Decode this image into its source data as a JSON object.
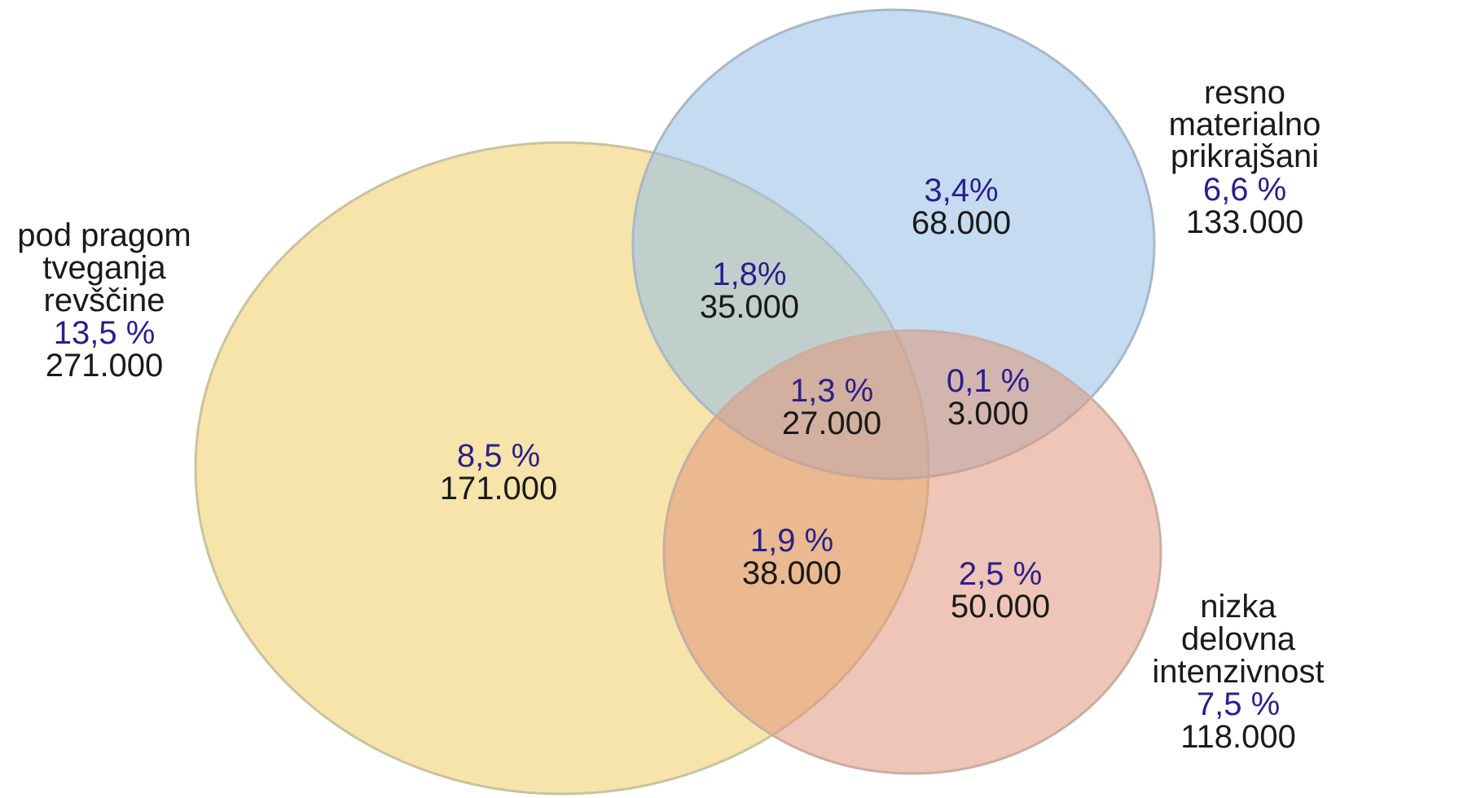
{
  "sets": [
    {
      "id": "poverty",
      "name_lines": [
        "pod pragom",
        "tveganja",
        "revščine"
      ],
      "percent": "13,5 %",
      "count": "271.000",
      "fill": "#f0d477",
      "stroke": "#c9c39e"
    },
    {
      "id": "deprived",
      "name_lines": [
        "resno",
        "materialno",
        "prikrajšani"
      ],
      "percent": "6,6 %",
      "count": "133.000",
      "fill": "#93bde6",
      "stroke": "#a9b8c4"
    },
    {
      "id": "work",
      "name_lines": [
        "nizka",
        "delovna",
        "intenzivnost"
      ],
      "percent": "7,5 %",
      "count": "118.000",
      "fill": "#e0957a",
      "stroke": "#c8aea2"
    }
  ],
  "regions": [
    {
      "id": "poverty-only",
      "percent": "8,5 %",
      "count": "171.000"
    },
    {
      "id": "deprived-only",
      "percent": "3,4%",
      "count": "68.000"
    },
    {
      "id": "poverty-deprived",
      "percent": "1,8%",
      "count": "35.000"
    },
    {
      "id": "all-three",
      "percent": "1,3 %",
      "count": "27.000"
    },
    {
      "id": "deprived-work",
      "percent": "0,1 %",
      "count": "3.000"
    },
    {
      "id": "poverty-work",
      "percent": "1,9 %",
      "count": "38.000"
    },
    {
      "id": "work-only",
      "percent": "2,5 %",
      "count": "50.000"
    }
  ]
}
